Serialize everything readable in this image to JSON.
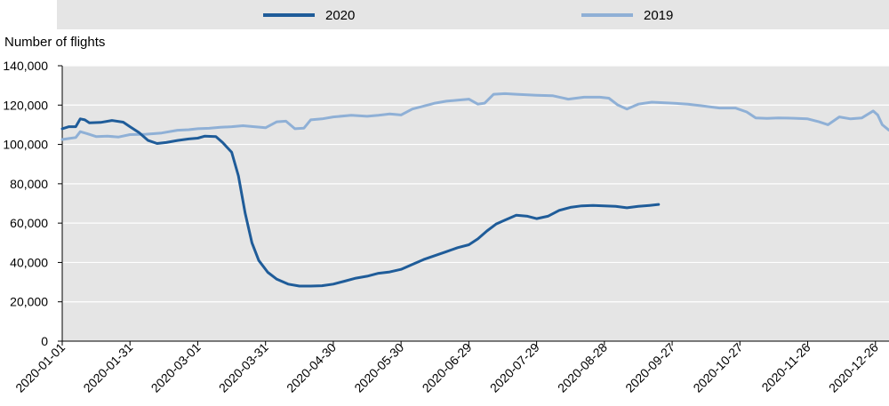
{
  "chart_data": {
    "type": "line",
    "ylabel": "Number of flights",
    "xlabel": "",
    "ylim": [
      0,
      140000
    ],
    "xlim": [
      "2020-01-01",
      "2021-01-01"
    ],
    "yticks": [
      {
        "value": 0,
        "label": "0"
      },
      {
        "value": 20000,
        "label": "20,000"
      },
      {
        "value": 40000,
        "label": "40,000"
      },
      {
        "value": 60000,
        "label": "60,000"
      },
      {
        "value": 80000,
        "label": "80,000"
      },
      {
        "value": 100000,
        "label": "100,000"
      },
      {
        "value": 120000,
        "label": "120,000"
      },
      {
        "value": 140000,
        "label": "140,000"
      }
    ],
    "xticks": [
      "2020-01-01",
      "2020-01-31",
      "2020-03-01",
      "2020-03-31",
      "2020-04-30",
      "2020-05-30",
      "2020-06-29",
      "2020-07-29",
      "2020-08-28",
      "2020-09-27",
      "2020-10-27",
      "2020-11-26",
      "2020-12-26"
    ],
    "grid": "horizontal",
    "legend_position": "top",
    "series": [
      {
        "name": "2020",
        "color": "#1f5c99",
        "points": [
          [
            "2020-01-01",
            108000
          ],
          [
            "2020-01-04",
            109000
          ],
          [
            "2020-01-07",
            109000
          ],
          [
            "2020-01-09",
            113000
          ],
          [
            "2020-01-11",
            112500
          ],
          [
            "2020-01-13",
            111000
          ],
          [
            "2020-01-18",
            111200
          ],
          [
            "2020-01-23",
            112200
          ],
          [
            "2020-01-28",
            111300
          ],
          [
            "2020-01-31",
            109000
          ],
          [
            "2020-02-04",
            106000
          ],
          [
            "2020-02-08",
            102000
          ],
          [
            "2020-02-12",
            100500
          ],
          [
            "2020-02-16",
            101000
          ],
          [
            "2020-02-21",
            102000
          ],
          [
            "2020-02-26",
            102800
          ],
          [
            "2020-03-01",
            103200
          ],
          [
            "2020-03-04",
            104200
          ],
          [
            "2020-03-09",
            104000
          ],
          [
            "2020-03-12",
            101000
          ],
          [
            "2020-03-16",
            96000
          ],
          [
            "2020-03-19",
            84000
          ],
          [
            "2020-03-22",
            65000
          ],
          [
            "2020-03-25",
            50000
          ],
          [
            "2020-03-28",
            41000
          ],
          [
            "2020-04-01",
            35000
          ],
          [
            "2020-04-05",
            31500
          ],
          [
            "2020-04-10",
            29000
          ],
          [
            "2020-04-15",
            28000
          ],
          [
            "2020-04-20",
            28000
          ],
          [
            "2020-04-25",
            28200
          ],
          [
            "2020-04-30",
            29000
          ],
          [
            "2020-05-05",
            30500
          ],
          [
            "2020-05-10",
            32000
          ],
          [
            "2020-05-15",
            33000
          ],
          [
            "2020-05-20",
            34500
          ],
          [
            "2020-05-25",
            35200
          ],
          [
            "2020-05-30",
            36500
          ],
          [
            "2020-06-04",
            39000
          ],
          [
            "2020-06-09",
            41500
          ],
          [
            "2020-06-14",
            43500
          ],
          [
            "2020-06-19",
            45500
          ],
          [
            "2020-06-24",
            47500
          ],
          [
            "2020-06-29",
            49000
          ],
          [
            "2020-07-03",
            52000
          ],
          [
            "2020-07-07",
            56000
          ],
          [
            "2020-07-11",
            59500
          ],
          [
            "2020-07-15",
            61500
          ],
          [
            "2020-07-20",
            64000
          ],
          [
            "2020-07-25",
            63500
          ],
          [
            "2020-07-29",
            62300
          ],
          [
            "2020-08-03",
            63500
          ],
          [
            "2020-08-08",
            66500
          ],
          [
            "2020-08-13",
            68000
          ],
          [
            "2020-08-18",
            68800
          ],
          [
            "2020-08-23",
            69000
          ],
          [
            "2020-08-28",
            68800
          ],
          [
            "2020-09-02",
            68500
          ],
          [
            "2020-09-07",
            67800
          ],
          [
            "2020-09-12",
            68500
          ],
          [
            "2020-09-17",
            69000
          ],
          [
            "2020-09-21",
            69500
          ]
        ]
      },
      {
        "name": "2019",
        "color": "#8fb0d6",
        "points": [
          [
            "2020-01-01",
            102500
          ],
          [
            "2020-01-04",
            103000
          ],
          [
            "2020-01-07",
            103500
          ],
          [
            "2020-01-09",
            106500
          ],
          [
            "2020-01-12",
            105500
          ],
          [
            "2020-01-16",
            104000
          ],
          [
            "2020-01-21",
            104200
          ],
          [
            "2020-01-26",
            103800
          ],
          [
            "2020-01-31",
            105000
          ],
          [
            "2020-02-07",
            105200
          ],
          [
            "2020-02-14",
            105800
          ],
          [
            "2020-02-21",
            107200
          ],
          [
            "2020-02-26",
            107500
          ],
          [
            "2020-03-01",
            108000
          ],
          [
            "2020-03-06",
            108200
          ],
          [
            "2020-03-11",
            108700
          ],
          [
            "2020-03-16",
            109000
          ],
          [
            "2020-03-21",
            109500
          ],
          [
            "2020-03-26",
            109000
          ],
          [
            "2020-03-31",
            108500
          ],
          [
            "2020-04-05",
            111500
          ],
          [
            "2020-04-09",
            111800
          ],
          [
            "2020-04-13",
            108000
          ],
          [
            "2020-04-17",
            108300
          ],
          [
            "2020-04-20",
            112500
          ],
          [
            "2020-04-25",
            113000
          ],
          [
            "2020-04-30",
            114000
          ],
          [
            "2020-05-08",
            114800
          ],
          [
            "2020-05-15",
            114300
          ],
          [
            "2020-05-20",
            114800
          ],
          [
            "2020-05-25",
            115500
          ],
          [
            "2020-05-30",
            115000
          ],
          [
            "2020-06-04",
            118000
          ],
          [
            "2020-06-09",
            119500
          ],
          [
            "2020-06-14",
            121000
          ],
          [
            "2020-06-19",
            122000
          ],
          [
            "2020-06-24",
            122500
          ],
          [
            "2020-06-29",
            123000
          ],
          [
            "2020-07-03",
            120500
          ],
          [
            "2020-07-06",
            121000
          ],
          [
            "2020-07-10",
            125500
          ],
          [
            "2020-07-15",
            125800
          ],
          [
            "2020-07-20",
            125500
          ],
          [
            "2020-07-29",
            125000
          ],
          [
            "2020-08-05",
            124800
          ],
          [
            "2020-08-12",
            123000
          ],
          [
            "2020-08-19",
            124000
          ],
          [
            "2020-08-26",
            124000
          ],
          [
            "2020-08-30",
            123500
          ],
          [
            "2020-09-03",
            120000
          ],
          [
            "2020-09-07",
            118000
          ],
          [
            "2020-09-12",
            120500
          ],
          [
            "2020-09-18",
            121500
          ],
          [
            "2020-09-27",
            121000
          ],
          [
            "2020-10-04",
            120500
          ],
          [
            "2020-10-11",
            119500
          ],
          [
            "2020-10-18",
            118500
          ],
          [
            "2020-10-25",
            118500
          ],
          [
            "2020-10-30",
            116500
          ],
          [
            "2020-11-03",
            113500
          ],
          [
            "2020-11-08",
            113200
          ],
          [
            "2020-11-13",
            113500
          ],
          [
            "2020-11-20",
            113300
          ],
          [
            "2020-11-26",
            113000
          ],
          [
            "2020-12-01",
            111500
          ],
          [
            "2020-12-05",
            110000
          ],
          [
            "2020-12-10",
            114000
          ],
          [
            "2020-12-15",
            113000
          ],
          [
            "2020-12-20",
            113500
          ],
          [
            "2020-12-25",
            117000
          ],
          [
            "2020-12-27",
            115000
          ],
          [
            "2020-12-29",
            110000
          ],
          [
            "2021-01-01",
            107200
          ]
        ]
      }
    ]
  }
}
